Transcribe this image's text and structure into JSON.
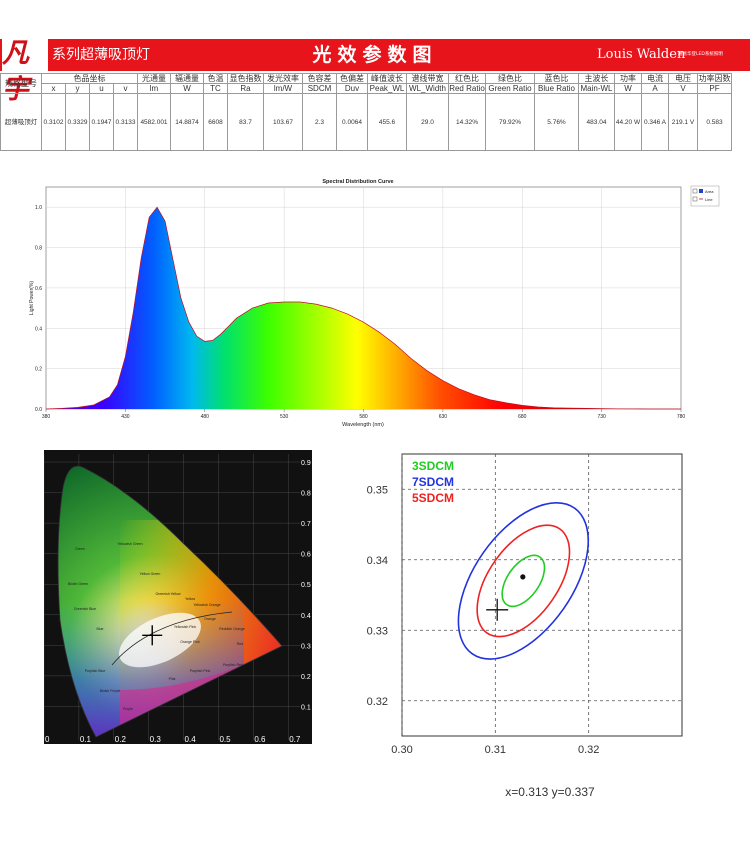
{
  "header": {
    "logo_text": "凡宇",
    "series_title": "系列超薄吸顶灯",
    "center_title": "光效参数图",
    "brand": "Louis Walden",
    "brand_sub": "路易华登LED系统照明"
  },
  "colors": {
    "header_red": "#e8141c",
    "cie_bg": "#111111",
    "sdcm_3": "#22cc22",
    "sdcm_5": "#ee2222",
    "sdcm_7": "#2233dd"
  },
  "params_table": {
    "model_label": "规格型号",
    "chroma_group": "色品坐标",
    "columns": [
      {
        "top": "x",
        "bottom": ""
      },
      {
        "top": "y",
        "bottom": ""
      },
      {
        "top": "u",
        "bottom": ""
      },
      {
        "top": "v",
        "bottom": ""
      },
      {
        "top": "光通量",
        "bottom": "lm"
      },
      {
        "top": "辐通量",
        "bottom": "W"
      },
      {
        "top": "色温",
        "bottom": "TC"
      },
      {
        "top": "显色指数",
        "bottom": "Ra"
      },
      {
        "top": "发光效率",
        "bottom": "lm/W"
      },
      {
        "top": "色容差",
        "bottom": "SDCM"
      },
      {
        "top": "色偏差",
        "bottom": "Duv"
      },
      {
        "top": "峰值波长",
        "bottom": "Peak_WL"
      },
      {
        "top": "谱线带宽",
        "bottom": "WL_Width"
      },
      {
        "top": "红色比",
        "bottom": "Red Ratio"
      },
      {
        "top": "绿色比",
        "bottom": "Green Ratio"
      },
      {
        "top": "蓝色比",
        "bottom": "Blue Ratio"
      },
      {
        "top": "主波长",
        "bottom": "Main-WL"
      },
      {
        "top": "功率",
        "bottom": "W"
      },
      {
        "top": "电流",
        "bottom": "A"
      },
      {
        "top": "电压",
        "bottom": "V"
      },
      {
        "top": "功率因数",
        "bottom": "PF"
      }
    ],
    "row": {
      "model": "超薄吸顶灯",
      "values": [
        "0.3102",
        "0.3329",
        "0.1947",
        "0.3133",
        "4582.001",
        "14.8874",
        "6608",
        "83.7",
        "103.67",
        "2.3",
        "0.0064",
        "455.6",
        "29.0",
        "14.32%",
        "79.92%",
        "5.76%",
        "483.04",
        "44.20 W",
        "0.346 A",
        "219.1 V",
        "0.583"
      ]
    }
  },
  "chart_data": [
    {
      "type": "area",
      "title": "Spectral Distribution Curve",
      "xlabel": "Wavelength (nm)",
      "ylabel": "Light Power(%)",
      "xlim": [
        380,
        780
      ],
      "ylim": [
        0,
        1.1
      ],
      "xticks": [
        380,
        430,
        480,
        530,
        580,
        630,
        680,
        730,
        780
      ],
      "yticks": [
        0.0,
        0.2,
        0.4,
        0.6,
        0.8,
        1.0
      ],
      "ytick_labels": [
        "0.0",
        "0.2",
        "0.4",
        "0.6",
        "0.8",
        "1.0"
      ],
      "legend": [
        "Area",
        "Line"
      ],
      "legend_position": "top-right",
      "x": [
        380,
        390,
        400,
        410,
        420,
        425,
        430,
        435,
        440,
        445,
        450,
        455,
        460,
        465,
        470,
        475,
        480,
        485,
        490,
        495,
        500,
        510,
        520,
        530,
        540,
        550,
        560,
        570,
        580,
        590,
        600,
        610,
        620,
        630,
        640,
        650,
        660,
        670,
        680,
        690,
        700,
        720,
        740,
        760,
        780
      ],
      "y": [
        0.0,
        0.003,
        0.008,
        0.02,
        0.06,
        0.12,
        0.26,
        0.48,
        0.75,
        0.95,
        1.0,
        0.93,
        0.74,
        0.55,
        0.43,
        0.36,
        0.335,
        0.34,
        0.37,
        0.41,
        0.45,
        0.5,
        0.525,
        0.53,
        0.53,
        0.52,
        0.5,
        0.47,
        0.43,
        0.38,
        0.32,
        0.25,
        0.19,
        0.14,
        0.1,
        0.07,
        0.045,
        0.03,
        0.018,
        0.01,
        0.006,
        0.003,
        0.001,
        0.0,
        0.0
      ]
    },
    {
      "type": "scatter",
      "title": "",
      "xlim": [
        0.0,
        0.8
      ],
      "ylim": [
        0.0,
        0.9
      ],
      "xticks": [
        0.0,
        0.1,
        0.2,
        0.3,
        0.4,
        0.5,
        0.6,
        0.7
      ],
      "ytick_labels": [
        "0.9",
        "0.8",
        "0.7",
        "0.6",
        "0.5",
        "0.4",
        "0.3",
        "0.2",
        "0.1"
      ],
      "yticks": [
        0.9,
        0.8,
        0.7,
        0.6,
        0.5,
        0.4,
        0.3,
        0.2,
        0.1
      ],
      "point": {
        "x": 0.3102,
        "y": 0.3329
      },
      "region_labels": [
        "Green",
        "Yellowish Green",
        "Yellow Green",
        "Greenish Yellow",
        "Yellow",
        "Yellowish Orange",
        "Orange",
        "Reddish Orange",
        "Red",
        "Purplish Red",
        "Purplish Pink",
        "Pink",
        "Purple",
        "Bluish Purple",
        "Purplish Blue",
        "Blue",
        "Greenish Blue",
        "Bluish Green",
        "Orange Pink",
        "Yellowish Pink"
      ]
    },
    {
      "type": "scatter",
      "title": "",
      "xlim": [
        0.3,
        0.33
      ],
      "ylim": [
        0.315,
        0.355
      ],
      "xticks": [
        0.3,
        0.31,
        0.32
      ],
      "xtick_labels": [
        "0.30",
        "0.31",
        "0.32"
      ],
      "yticks": [
        0.35,
        0.34,
        0.33,
        0.32
      ],
      "ytick_labels": [
        "0.35",
        "0.34",
        "0.33",
        "0.32"
      ],
      "series": [
        {
          "name": "3SDCM",
          "color": "#22cc22"
        },
        {
          "name": "7SDCM",
          "color": "#2233dd"
        },
        {
          "name": "5SDCM",
          "color": "#ee2222"
        }
      ],
      "target_point": {
        "x": 0.3102,
        "y": 0.3329
      },
      "center_point": {
        "x": 0.313,
        "y": 0.337
      },
      "coordinate_text": "x=0.313  y=0.337"
    }
  ]
}
